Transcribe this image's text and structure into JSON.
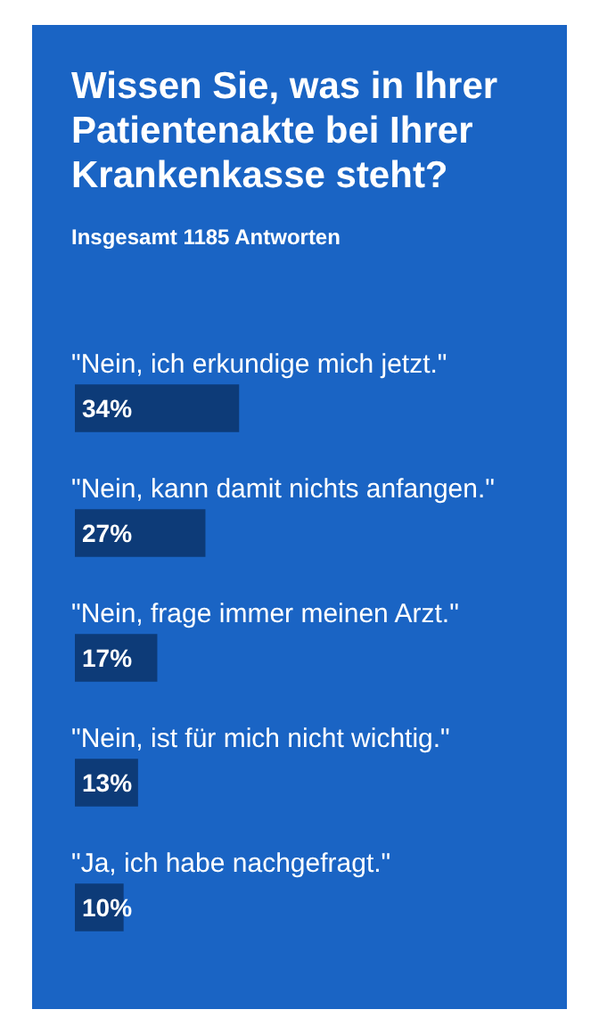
{
  "chart_data": {
    "type": "bar",
    "orientation": "horizontal",
    "title": "Wissen Sie, was in Ihrer Patientenakte bei Ihrer Krankenkasse steht?",
    "subtitle": "Insgesamt 1185 Antworten",
    "categories": [
      "\"Nein, ich erkundige mich jetzt.\"",
      "\"Nein, kann damit nichts anfangen.\"",
      "\"Nein, frage immer meinen Arzt.\"",
      "\"Nein, ist für mich nicht wichtig.\"",
      "\"Ja, ich habe nachgefragt.\""
    ],
    "values": [
      34,
      27,
      17,
      13,
      10
    ],
    "value_labels": [
      "34%",
      "27%",
      "17%",
      "13%",
      "10%"
    ],
    "color": "#0d3b78",
    "tick_labels": "y"
  }
}
